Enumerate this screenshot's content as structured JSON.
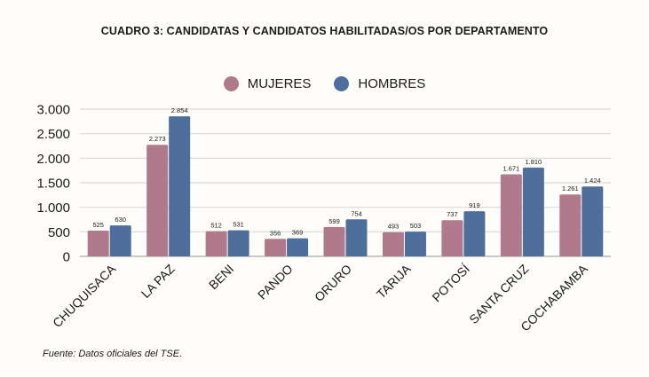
{
  "chart_data": {
    "type": "bar",
    "title": "CUADRO 3: CANDIDATAS Y CANDIDATOS HABILITADAS/OS POR DEPARTAMENTO",
    "xlabel": "",
    "ylabel": "",
    "ylim": [
      0,
      3000
    ],
    "yticks": [
      0,
      500,
      1000,
      1500,
      2000,
      2500,
      3000
    ],
    "ytick_labels": [
      "0",
      "500",
      "1.000",
      "1.500",
      "2.000",
      "2.500",
      "3.000"
    ],
    "grid": true,
    "legend_position": "top-center",
    "categories": [
      "CHUQUISACA",
      "LA PAZ",
      "BENI",
      "PANDO",
      "ORURO",
      "TARIJA",
      "POTOSÍ",
      "SANTA CRUZ",
      "COCHABAMBA"
    ],
    "series": [
      {
        "name": "MUJERES",
        "color": "#b07a8c",
        "values": [
          525,
          2273,
          512,
          356,
          599,
          493,
          737,
          1671,
          1261
        ],
        "labels": [
          "525",
          "2.273",
          "512",
          "356",
          "599",
          "493",
          "737",
          "1.671",
          "1.261"
        ]
      },
      {
        "name": "HOMBRES",
        "color": "#4e6e9b",
        "values": [
          630,
          2854,
          531,
          369,
          754,
          503,
          919,
          1810,
          1424
        ],
        "labels": [
          "630",
          "2.854",
          "531",
          "369",
          "754",
          "503",
          "919",
          "1.810",
          "1.424"
        ]
      }
    ]
  },
  "source": "Fuente: Datos oficiales del TSE."
}
